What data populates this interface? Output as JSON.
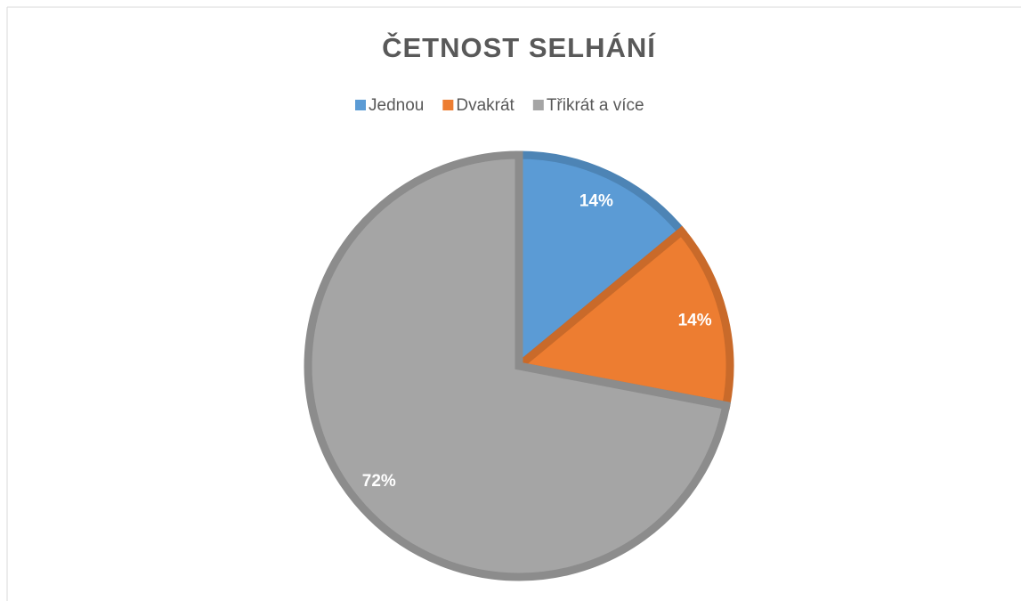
{
  "chart_data": {
    "type": "pie",
    "title": "ČETNOST SELHÁNÍ",
    "categories": [
      "Jednou",
      "Dvakrát",
      "Třikrát a více"
    ],
    "values": [
      14,
      14,
      72
    ],
    "value_labels": [
      "14%",
      "14%",
      "72%"
    ],
    "colors": [
      "#5b9bd5",
      "#ed7d31",
      "#a5a5a5"
    ],
    "legend": "top"
  }
}
